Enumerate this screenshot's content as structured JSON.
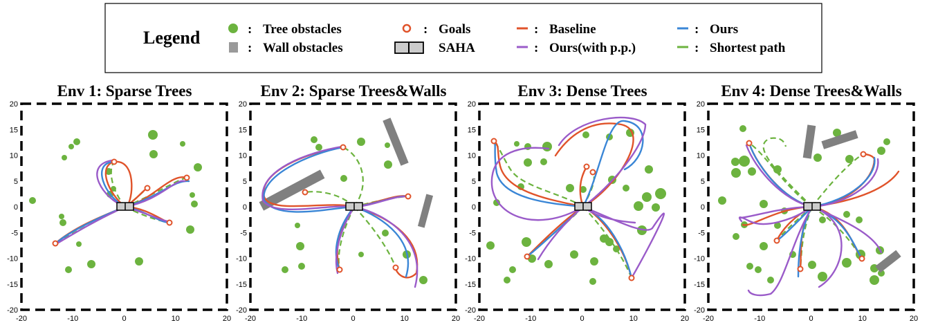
{
  "legend": {
    "title": "Legend",
    "items": [
      {
        "key": "tree",
        "sep": ":",
        "label": "Tree obstacles",
        "color": "#6cb33f",
        "icon": "green-circle-icon"
      },
      {
        "key": "wall",
        "sep": ":",
        "label": "Wall obstacles",
        "color": "#9a9a9a",
        "icon": "gray-square-icon"
      },
      {
        "key": "goal",
        "sep": ":",
        "label": "Goals",
        "color": "#e0532a",
        "icon": "red-ring-icon"
      },
      {
        "key": "saha",
        "sep": "",
        "label": "SAHA",
        "color": "#cccccc",
        "icon": "vehicle-box-icon"
      },
      {
        "key": "baseline",
        "sep": ":",
        "label": "Baseline",
        "color": "#e0532a",
        "icon": "red-dash-icon"
      },
      {
        "key": "ours_pp",
        "sep": ":",
        "label": "Ours(with p.p.)",
        "color": "#9a5bc9",
        "icon": "purple-dash-icon"
      },
      {
        "key": "ours",
        "sep": ":",
        "label": "Ours",
        "color": "#3a86d6",
        "icon": "blue-dash-icon"
      },
      {
        "key": "shortest",
        "sep": ":",
        "label": "Shortest path",
        "color": "#6cb33f",
        "icon": "green-dash-icon"
      }
    ]
  },
  "axis": {
    "ticks_x": [
      "-20",
      "-10",
      "0",
      "10",
      "20"
    ],
    "ticks_y": [
      "20",
      "15",
      "10",
      "5",
      "0",
      "-5",
      "-10",
      "-15",
      "-20"
    ]
  },
  "panels": [
    {
      "title": "Env 1: Sparse Trees"
    },
    {
      "title": "Env 2: Sparse Trees&Walls"
    },
    {
      "title": "Env 3: Dense Trees"
    },
    {
      "title": "Env 4: Dense Trees&Walls"
    }
  ]
}
